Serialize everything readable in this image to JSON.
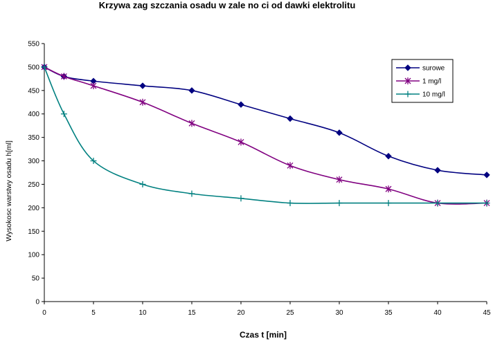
{
  "chart_data": {
    "type": "line",
    "title": "Krzywa zag  szczania osadu w zale  no  ci od dawki elektrolitu",
    "xlabel": "Czas t [min]",
    "ylabel": "Wysokosc warstwy osadu h[ml]",
    "xlim": [
      0,
      45
    ],
    "ylim": [
      0,
      550
    ],
    "x_ticks": [
      0,
      5,
      10,
      15,
      20,
      25,
      30,
      35,
      40,
      45
    ],
    "y_ticks": [
      0,
      50,
      100,
      150,
      200,
      250,
      300,
      350,
      400,
      450,
      500,
      550
    ],
    "grid": false,
    "legend_position": "top-right",
    "series": [
      {
        "name": "surowe",
        "color": "#000080",
        "marker": "diamond",
        "x": [
          0,
          2,
          5,
          10,
          15,
          20,
          25,
          30,
          35,
          40,
          45
        ],
        "y": [
          500,
          480,
          470,
          460,
          450,
          420,
          390,
          360,
          310,
          280,
          270
        ]
      },
      {
        "name": "1 mg/l",
        "color": "#800080",
        "marker": "star",
        "x": [
          0,
          2,
          5,
          10,
          15,
          20,
          25,
          30,
          35,
          40,
          45
        ],
        "y": [
          500,
          480,
          460,
          425,
          380,
          340,
          290,
          260,
          240,
          210,
          210
        ]
      },
      {
        "name": "10 mg/l",
        "color": "#008080",
        "marker": "plus",
        "x": [
          0,
          2,
          5,
          10,
          15,
          20,
          25,
          30,
          35,
          40,
          45
        ],
        "y": [
          500,
          400,
          300,
          250,
          230,
          220,
          210,
          210,
          210,
          210,
          210
        ]
      }
    ]
  }
}
